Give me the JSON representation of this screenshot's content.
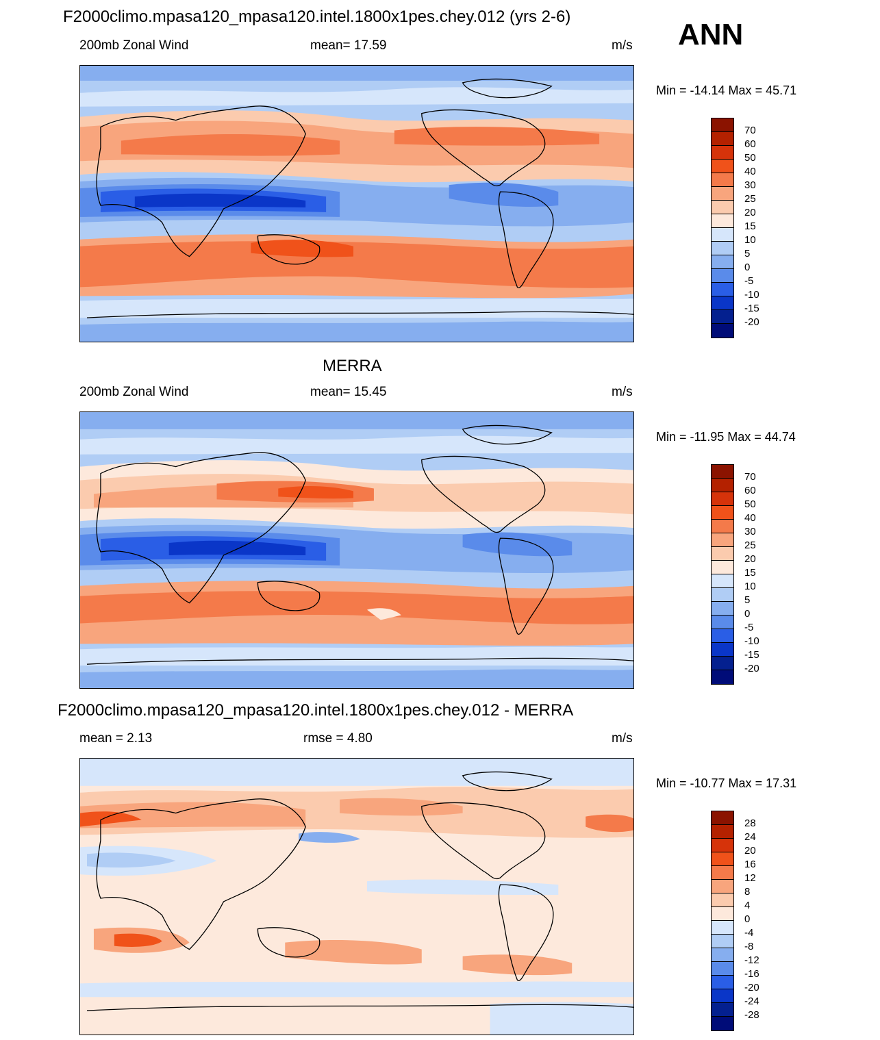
{
  "season": "ANN",
  "panels": [
    {
      "id": "model",
      "title": "F2000climo.mpasa120_mpasa120.intel.1800x1pes.chey.012 (yrs 2-6)",
      "left_label": "200mb Zonal Wind",
      "center_label": "mean=  17.59",
      "right_label": "m/s",
      "minmax": "Min = -14.14 Max =  45.71",
      "levels": [
        "70",
        "60",
        "50",
        "40",
        "30",
        "25",
        "20",
        "15",
        "10",
        "5",
        "0",
        "-5",
        "-10",
        "-15",
        "-20"
      ],
      "colors": [
        "#8b1300",
        "#b42100",
        "#d6330a",
        "#f0521a",
        "#f47a4a",
        "#f8a57d",
        "#fbcbae",
        "#fde9dc",
        "#d6e6fb",
        "#b0cdf5",
        "#86aeef",
        "#5a8bea",
        "#2a5ee6",
        "#0a36c8",
        "#04208f",
        "#000c78"
      ],
      "data_range": [
        -14.14,
        45.71
      ]
    },
    {
      "id": "obs",
      "title": "MERRA",
      "left_label": "200mb Zonal Wind",
      "center_label": "mean=  15.45",
      "right_label": "m/s",
      "minmax": "Min = -11.95 Max =  44.74",
      "levels": [
        "70",
        "60",
        "50",
        "40",
        "30",
        "25",
        "20",
        "15",
        "10",
        "5",
        "0",
        "-5",
        "-10",
        "-15",
        "-20"
      ],
      "colors": [
        "#8b1300",
        "#b42100",
        "#d6330a",
        "#f0521a",
        "#f47a4a",
        "#f8a57d",
        "#fbcbae",
        "#fde9dc",
        "#d6e6fb",
        "#b0cdf5",
        "#86aeef",
        "#5a8bea",
        "#2a5ee6",
        "#0a36c8",
        "#04208f",
        "#000c78"
      ],
      "data_range": [
        -11.95,
        44.74
      ]
    },
    {
      "id": "diff",
      "title": "F2000climo.mpasa120_mpasa120.intel.1800x1pes.chey.012 - MERRA",
      "left_label": "mean =   2.13",
      "center_label": "rmse =   4.80",
      "right_label": "m/s",
      "minmax": "Min = -10.77 Max =  17.31",
      "levels": [
        "28",
        "24",
        "20",
        "16",
        "12",
        "8",
        "4",
        "0",
        "-4",
        "-8",
        "-12",
        "-16",
        "-20",
        "-24",
        "-28"
      ],
      "colors": [
        "#8b1300",
        "#b42100",
        "#d6330a",
        "#f0521a",
        "#f47a4a",
        "#f8a57d",
        "#fbcbae",
        "#fde9dc",
        "#d6e6fb",
        "#b0cdf5",
        "#86aeef",
        "#5a8bea",
        "#2a5ee6",
        "#0a36c8",
        "#04208f",
        "#000c78"
      ],
      "data_range": [
        -10.77,
        17.31
      ]
    }
  ]
}
